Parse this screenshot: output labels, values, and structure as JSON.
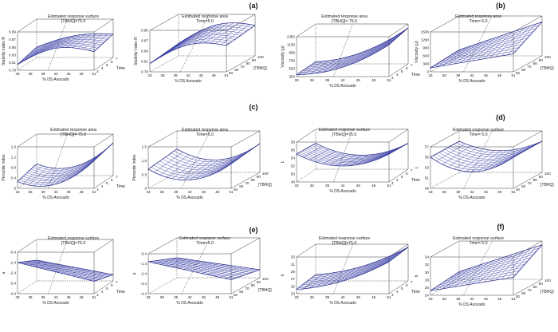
{
  "rows": [
    {
      "label": "(a)",
      "left": {
        "title": [
          "Estimated response surface",
          "[TBHQ]=75.0"
        ],
        "ylabel": "Stability index R",
        "yticks": [
          "0.79",
          "0.81",
          "0.83",
          "0.85",
          "0.87",
          "0.89"
        ],
        "xlabel": "% DS Avocado",
        "xticks": [
          "33",
          "36",
          "39",
          "42",
          "45",
          "48",
          "51"
        ],
        "zlabel": "Time",
        "zticks": [
          "3",
          "4",
          "5",
          "6",
          "7"
        ]
      },
      "right": {
        "title": [
          "Estimated response area",
          "Time=5.0"
        ],
        "ylabel": "Stability index R",
        "yticks": [
          "0.78",
          "0.81",
          "0.84",
          "0.87",
          "0.90"
        ],
        "xlabel": "% DS Avocado",
        "xticks": [
          "33",
          "36",
          "39",
          "42",
          "45",
          "48",
          "51"
        ],
        "zlabel": "[TBHQ]",
        "zticks": [
          "50",
          "60",
          "70",
          "80",
          "90",
          "100"
        ]
      }
    },
    {
      "label": "(b)",
      "left": {
        "title": [
          "Estimated response area",
          "[TBHQ]= 75.0"
        ],
        "ylabel": "Viscosity (μ)",
        "yticks": [
          "350",
          "550",
          "750",
          "950",
          "1150",
          "1350"
        ],
        "xlabel": "% DS Avocado",
        "xticks": [
          "33",
          "36",
          "39",
          "42",
          "45",
          "48",
          "51"
        ],
        "zlabel": "Time",
        "zticks": [
          "3",
          "4",
          "5",
          "6",
          "7"
        ]
      },
      "right": {
        "title": [
          "Estimated response area",
          "Time= 5.0"
        ],
        "ylabel": "Viscosity (μ)",
        "yticks": [
          "0",
          "300",
          "600",
          "900",
          "1200",
          "1500"
        ],
        "xlabel": "% DS Avocado",
        "xticks": [
          "33",
          "36",
          "39",
          "42",
          "45",
          "48",
          "51"
        ],
        "zlabel": "[TBHQ]",
        "zticks": [
          "50",
          "60",
          "70",
          "80",
          "90",
          "100"
        ]
      }
    },
    {
      "label": "(c)",
      "left": {
        "title": [
          "Estimated response area",
          "[TBHQ]= 75.0"
        ],
        "ylabel": "Peroxide index",
        "yticks": [
          "0",
          "0.4",
          "0.8",
          "1.2",
          "1.6"
        ],
        "xlabel": "% DS Avocado",
        "xticks": [
          "33",
          "36",
          "39",
          "42",
          "45",
          "48",
          "51"
        ],
        "zlabel": "Time",
        "zticks": [
          "3",
          "4",
          "5",
          "6",
          "7"
        ]
      },
      "right": {
        "title": [
          "Estimated response area",
          "Time=5.0"
        ],
        "ylabel": "Peroxide index",
        "yticks": [
          "0",
          "0.5",
          "1.0",
          "1.5"
        ],
        "xlabel": "% DS Avocado",
        "xticks": [
          "33",
          "36",
          "39",
          "42",
          "45",
          "48",
          "51"
        ],
        "zlabel": "[TBHQ]",
        "zticks": [
          "50",
          "60",
          "70",
          "80",
          "90",
          "100"
        ]
      }
    },
    {
      "label": "(d)",
      "left": {
        "title": [
          "Estimated response surface",
          "[TBHQ]=75.0"
        ],
        "ylabel": "L",
        "yticks": [
          "48",
          "50",
          "52",
          "54",
          "56",
          "58"
        ],
        "xlabel": "% DS Avocado",
        "xticks": [
          "33",
          "36",
          "39",
          "42",
          "45",
          "48",
          "51"
        ],
        "zlabel": "Time",
        "zticks": [
          "3",
          "4",
          "5",
          "6",
          "7"
        ]
      },
      "right": {
        "title": [
          "Estimated response surface",
          "Time= 5.0"
        ],
        "ylabel": "L",
        "yticks": [
          "49",
          "51",
          "53",
          "55",
          "57"
        ],
        "xlabel": "% DS Avocado",
        "xticks": [
          "33",
          "36",
          "39",
          "42",
          "45",
          "48",
          "51"
        ],
        "zlabel": "[TBHQ]",
        "zticks": [
          "50",
          "60",
          "70",
          "80",
          "90",
          "100"
        ]
      }
    },
    {
      "label": "(e)",
      "left": {
        "title": [
          "Estimated response surface",
          "[TBHQ]=75.0"
        ],
        "ylabel": "a",
        "yticks": [
          "-4.4",
          "-3.4",
          "-2.4",
          "-1.4",
          "-0.4"
        ],
        "xlabel": "% DS Avocado",
        "xticks": [
          "33",
          "36",
          "39",
          "42",
          "45",
          "48",
          "51"
        ],
        "zlabel": "Time",
        "zticks": [
          "3",
          "4",
          "5",
          "6",
          "7"
        ]
      },
      "right": {
        "title": [
          "Estimated response surface",
          "Time=5.0"
        ],
        "ylabel": "a",
        "yticks": [
          "-4.4",
          "-3.4",
          "-2.4",
          "-1.4",
          "-0.4"
        ],
        "xlabel": "% DS Avocado",
        "xticks": [
          "33",
          "36",
          "39",
          "42",
          "45",
          "48",
          "51"
        ],
        "zlabel": "[TBHQ]",
        "zticks": [
          "50",
          "60",
          "70",
          "80",
          "90",
          "100"
        ]
      }
    },
    {
      "label": "(f)",
      "left": {
        "title": [
          "Estimated response surface",
          "[TBHQ]=75.0"
        ],
        "ylabel": "b",
        "yticks": [
          "23",
          "25",
          "27",
          "29",
          "31",
          "33"
        ],
        "xlabel": "% DS Avocado",
        "xticks": [
          "33",
          "36",
          "39",
          "42",
          "45",
          "48",
          "51"
        ],
        "zlabel": "Time",
        "zticks": [
          "3",
          "4",
          "5",
          "6",
          "7"
        ]
      },
      "right": {
        "title": [
          "Estimated response surface",
          "Time= 5.0"
        ],
        "ylabel": "b",
        "yticks": [
          "24",
          "26",
          "28",
          "30",
          "32",
          "34"
        ],
        "xlabel": "% DS Avocado",
        "xticks": [
          "33",
          "36",
          "39",
          "42",
          "45",
          "48",
          "51"
        ],
        "zlabel": "[TBHQ]",
        "zticks": [
          "50",
          "60",
          "70",
          "80",
          "90",
          "100"
        ]
      }
    }
  ]
}
